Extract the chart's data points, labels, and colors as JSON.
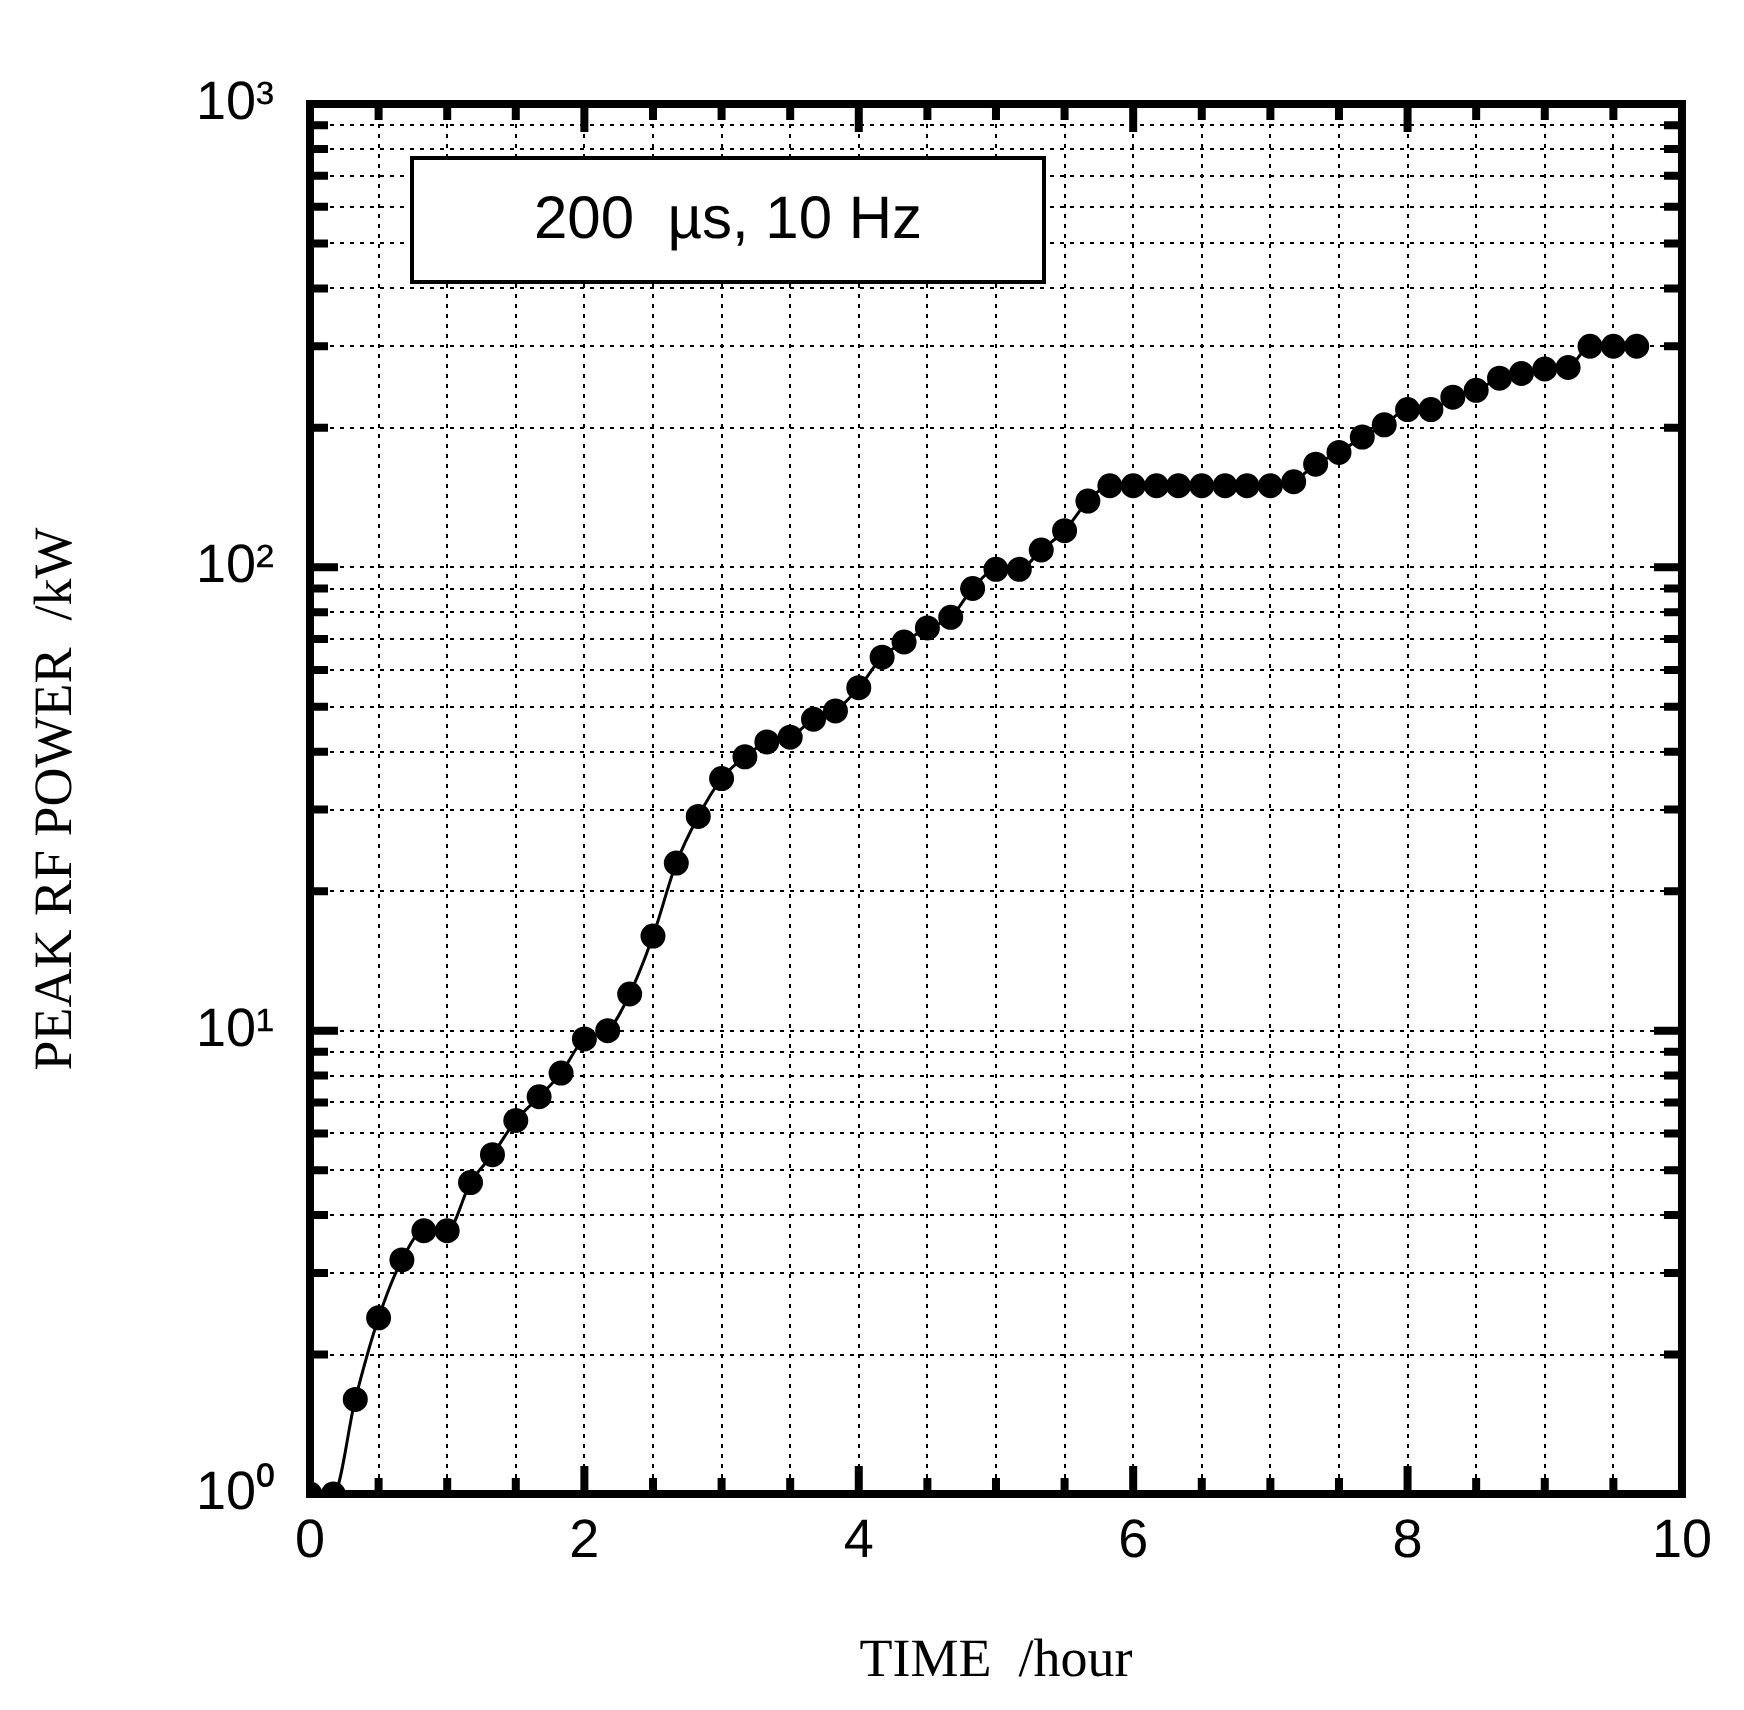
{
  "chart_data": {
    "type": "line",
    "xlabel": "TIME  /hour",
    "ylabel": "PEAK RF POWER  /kW",
    "annotations": [
      "200  µs, 10 Hz"
    ],
    "x": [
      0,
      0.17,
      0.33,
      0.5,
      0.67,
      0.83,
      1.0,
      1.17,
      1.33,
      1.5,
      1.67,
      1.83,
      2.0,
      2.17,
      2.33,
      2.5,
      2.67,
      2.83,
      3.0,
      3.17,
      3.33,
      3.5,
      3.67,
      3.83,
      4.0,
      4.17,
      4.33,
      4.5,
      4.67,
      4.83,
      5.0,
      5.17,
      5.33,
      5.5,
      5.67,
      5.83,
      6.0,
      6.17,
      6.33,
      6.5,
      6.67,
      6.83,
      7.0,
      7.17,
      7.33,
      7.5,
      7.67,
      7.83,
      8.0,
      8.17,
      8.33,
      8.5,
      8.67,
      8.83,
      9.0,
      9.17,
      9.33,
      9.5,
      9.67
    ],
    "series": [
      {
        "color": "#000000",
        "values": [
          1.0,
          1.0,
          1.6,
          2.4,
          3.2,
          3.7,
          3.7,
          4.7,
          5.4,
          6.4,
          7.2,
          8.1,
          9.6,
          10,
          12,
          16,
          23,
          29,
          35,
          39,
          42,
          43,
          47,
          49,
          55,
          64,
          69,
          74,
          78,
          90,
          99,
          99,
          109,
          120,
          139,
          150,
          150,
          150,
          150,
          150,
          150,
          150,
          150,
          153,
          167,
          177,
          191,
          203,
          219,
          219,
          233,
          241,
          256,
          262,
          268,
          270,
          300,
          300,
          300
        ]
      }
    ],
    "xlim": [
      0,
      10
    ],
    "ylim": [
      1,
      1000
    ],
    "log": "y",
    "grid": true,
    "legend": false,
    "marker": "circle",
    "line_style": "solid",
    "xticks": [
      0,
      {
        "value": 0.5,
        "label": null
      },
      {
        "value": 1,
        "label": null
      },
      {
        "value": 1.5,
        "label": null
      },
      2,
      {
        "value": 2.5,
        "label": null
      },
      {
        "value": 3,
        "label": null
      },
      {
        "value": 3.5,
        "label": null
      },
      4,
      {
        "value": 4.5,
        "label": null
      },
      {
        "value": 5,
        "label": null
      },
      {
        "value": 5.5,
        "label": null
      },
      6,
      {
        "value": 6.5,
        "label": null
      },
      {
        "value": 7,
        "label": null
      },
      {
        "value": 7.5,
        "label": null
      },
      8,
      {
        "value": 8.5,
        "label": null
      },
      {
        "value": 9,
        "label": null
      },
      {
        "value": 9.5,
        "label": null
      },
      10
    ],
    "yticks": [
      {
        "value": 1,
        "label": "10⁰"
      },
      {
        "value": 2,
        "label": null
      },
      {
        "value": 3,
        "label": null
      },
      {
        "value": 4,
        "label": null
      },
      {
        "value": 5,
        "label": null
      },
      {
        "value": 6,
        "label": null
      },
      {
        "value": 7,
        "label": null
      },
      {
        "value": 8,
        "label": null
      },
      {
        "value": 9,
        "label": null
      },
      {
        "value": 10,
        "label": "10¹"
      },
      {
        "value": 20,
        "label": null
      },
      {
        "value": 30,
        "label": null
      },
      {
        "value": 40,
        "label": null
      },
      {
        "value": 50,
        "label": null
      },
      {
        "value": 60,
        "label": null
      },
      {
        "value": 70,
        "label": null
      },
      {
        "value": 80,
        "label": null
      },
      {
        "value": 90,
        "label": null
      },
      {
        "value": 100,
        "label": "10²"
      },
      {
        "value": 200,
        "label": null
      },
      {
        "value": 300,
        "label": null
      },
      {
        "value": 400,
        "label": null
      },
      {
        "value": 500,
        "label": null
      },
      {
        "value": 600,
        "label": null
      },
      {
        "value": 700,
        "label": null
      },
      {
        "value": 800,
        "label": null
      },
      {
        "value": 900,
        "label": null
      },
      {
        "value": 1000,
        "label": "10³"
      }
    ]
  }
}
